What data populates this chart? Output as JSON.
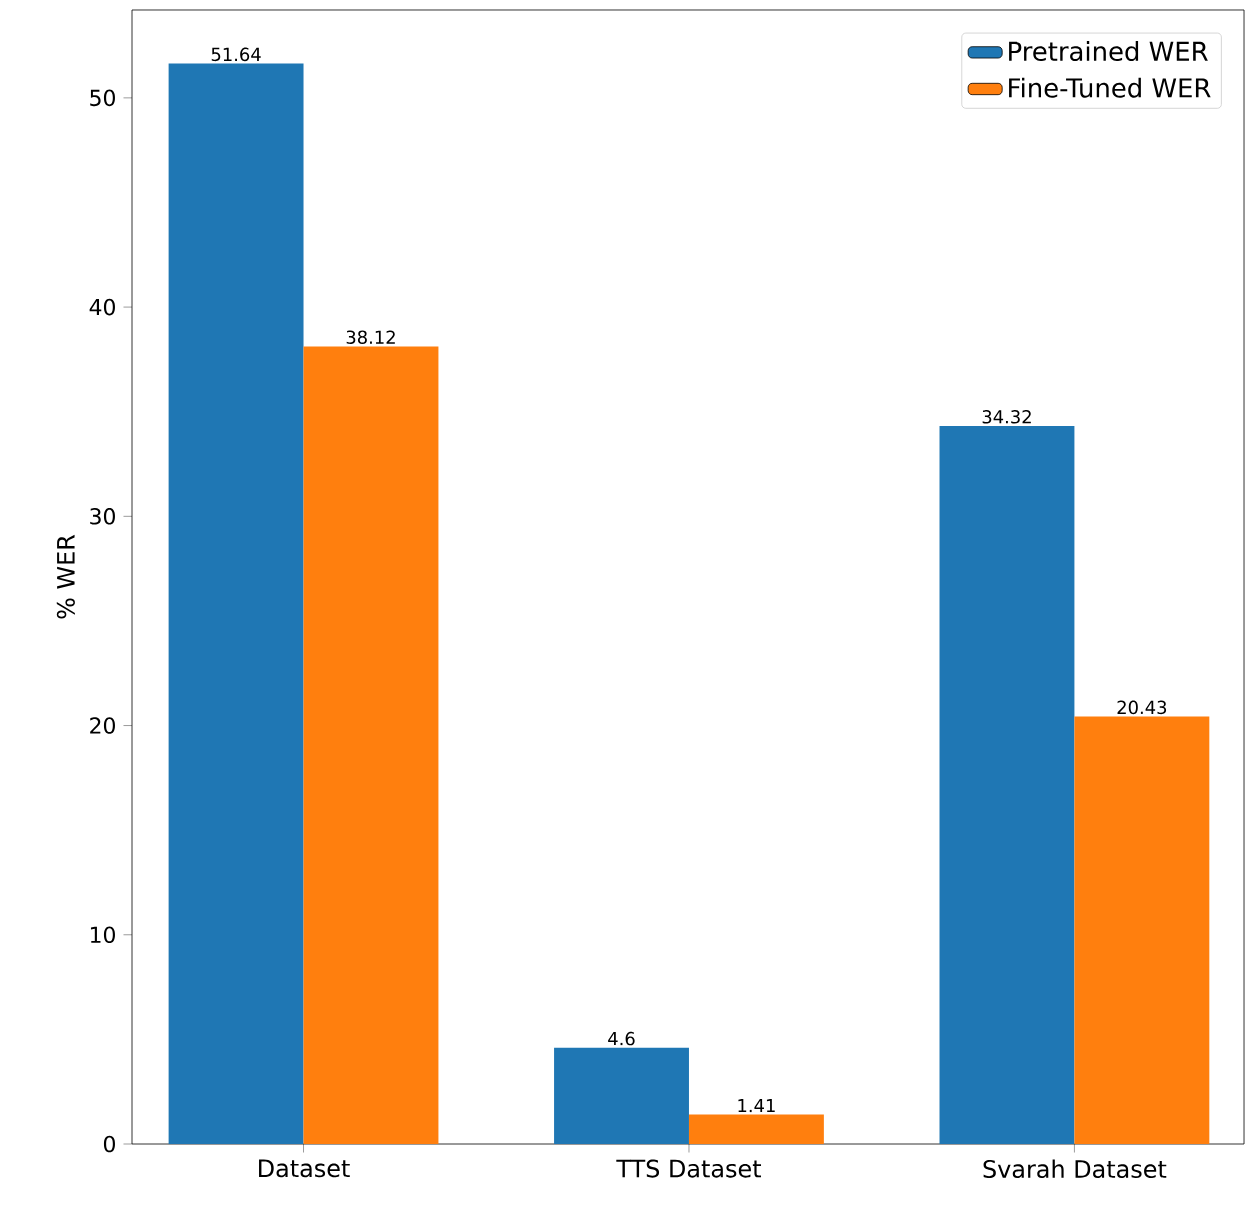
{
  "chart_data": {
    "type": "bar",
    "ylabel": "% WER",
    "categories": [
      "Dataset",
      "TTS Dataset",
      "Svarah Dataset"
    ],
    "series": [
      {
        "name": "Pretrained WER",
        "color": "#1f77b4",
        "values": [
          51.64,
          4.6,
          34.32
        ],
        "value_labels": [
          "51.64",
          "4.6",
          "34.32"
        ]
      },
      {
        "name": "Fine-Tuned WER",
        "color": "#ff7f0e",
        "values": [
          38.12,
          1.41,
          20.43
        ],
        "value_labels": [
          "38.12",
          "1.41",
          "20.43"
        ]
      }
    ],
    "ylim": [
      0,
      54.2
    ],
    "yticks": [
      0,
      10,
      20,
      30,
      40,
      50
    ],
    "legend": "top right",
    "grid": false
  }
}
